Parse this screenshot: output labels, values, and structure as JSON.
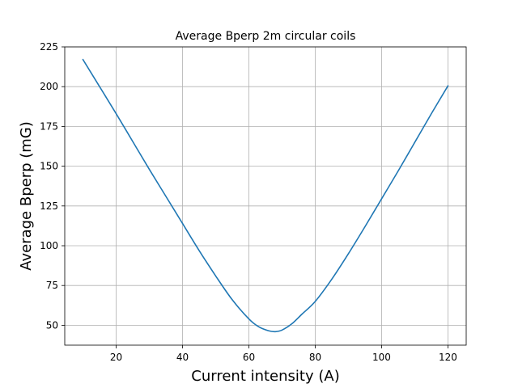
{
  "chart_data": {
    "type": "line",
    "title": "Average Bperp 2m circular coils",
    "xlabel": "Current intensity (A)",
    "ylabel": "Average Bperp (mG)",
    "xlim": [
      4.5,
      125.5
    ],
    "ylim": [
      37.5,
      225
    ],
    "xticks": [
      20,
      40,
      60,
      80,
      100,
      120
    ],
    "yticks": [
      50,
      75,
      100,
      125,
      150,
      175,
      200,
      225
    ],
    "grid": true,
    "series": [
      {
        "color": "#1f77b4",
        "x": [
          10,
          15,
          20,
          25,
          30,
          35,
          40,
          45,
          50,
          55,
          60,
          63,
          66,
          68,
          70,
          73,
          76,
          80,
          85,
          90,
          95,
          100,
          105,
          110,
          115,
          120
        ],
        "y": [
          217,
          200,
          183,
          165.5,
          148,
          131,
          114,
          97,
          81,
          66,
          54,
          49,
          46.5,
          46,
          47,
          51,
          57,
          65,
          79,
          95,
          112,
          129.5,
          147,
          165,
          183,
          200.5
        ]
      }
    ]
  }
}
